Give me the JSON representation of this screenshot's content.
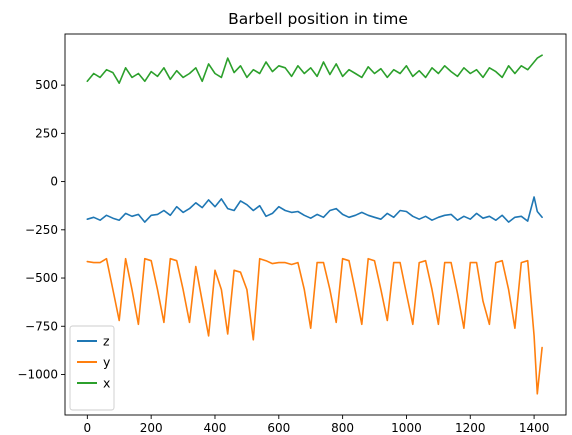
{
  "chart_data": {
    "type": "line",
    "title": "Barbell position in time",
    "xlabel": "",
    "ylabel": "",
    "xlim": [
      -70,
      1500
    ],
    "ylim": [
      -1210,
      765
    ],
    "x_ticks": [
      0,
      200,
      400,
      600,
      800,
      1000,
      1200,
      1400
    ],
    "y_ticks": [
      -1000,
      -750,
      -500,
      -250,
      0,
      250,
      500
    ],
    "grid": false,
    "legend_position": "lower-left",
    "x": [
      0,
      20,
      40,
      60,
      80,
      100,
      120,
      140,
      160,
      180,
      200,
      220,
      240,
      260,
      280,
      300,
      320,
      340,
      360,
      380,
      400,
      420,
      440,
      460,
      480,
      500,
      520,
      540,
      560,
      580,
      600,
      620,
      640,
      660,
      680,
      700,
      720,
      740,
      760,
      780,
      800,
      820,
      840,
      860,
      880,
      900,
      920,
      940,
      960,
      980,
      1000,
      1020,
      1040,
      1060,
      1080,
      1100,
      1120,
      1140,
      1160,
      1180,
      1200,
      1220,
      1240,
      1260,
      1280,
      1300,
      1320,
      1340,
      1360,
      1380,
      1400,
      1410,
      1425
    ],
    "series": [
      {
        "name": "z",
        "color": "#1f77b4",
        "values": [
          -195,
          -185,
          -200,
          -175,
          -190,
          -200,
          -165,
          -180,
          -170,
          -210,
          -175,
          -170,
          -150,
          -175,
          -130,
          -160,
          -140,
          -110,
          -135,
          -95,
          -130,
          -90,
          -140,
          -150,
          -100,
          -120,
          -150,
          -125,
          -180,
          -165,
          -130,
          -150,
          -160,
          -155,
          -175,
          -190,
          -170,
          -185,
          -150,
          -140,
          -170,
          -185,
          -175,
          -160,
          -175,
          -185,
          -195,
          -165,
          -185,
          -150,
          -155,
          -180,
          -195,
          -180,
          -200,
          -185,
          -175,
          -170,
          -200,
          -180,
          -195,
          -165,
          -190,
          -180,
          -200,
          -175,
          -210,
          -185,
          -180,
          -205,
          -80,
          -155,
          -185
        ]
      },
      {
        "name": "y",
        "color": "#ff7f0e",
        "values": [
          -415,
          -420,
          -420,
          -400,
          -560,
          -720,
          -400,
          -560,
          -740,
          -400,
          -410,
          -560,
          -730,
          -400,
          -410,
          -560,
          -730,
          -440,
          -620,
          -800,
          -460,
          -560,
          -790,
          -460,
          -470,
          -560,
          -820,
          -400,
          -410,
          -425,
          -420,
          -420,
          -430,
          -420,
          -560,
          -760,
          -420,
          -420,
          -560,
          -730,
          -400,
          -410,
          -570,
          -740,
          -400,
          -410,
          -560,
          -720,
          -420,
          -420,
          -580,
          -740,
          -420,
          -410,
          -560,
          -740,
          -420,
          -420,
          -580,
          -760,
          -420,
          -420,
          -620,
          -740,
          -420,
          -410,
          -560,
          -760,
          -420,
          -410,
          -800,
          -1100,
          -860
        ]
      },
      {
        "name": "x",
        "color": "#2ca02c",
        "values": [
          520,
          560,
          540,
          580,
          565,
          510,
          590,
          540,
          560,
          520,
          570,
          545,
          590,
          530,
          575,
          540,
          560,
          590,
          520,
          610,
          560,
          540,
          640,
          565,
          600,
          540,
          580,
          560,
          620,
          570,
          600,
          590,
          545,
          600,
          560,
          590,
          545,
          620,
          555,
          610,
          545,
          580,
          560,
          540,
          595,
          560,
          585,
          540,
          580,
          560,
          600,
          545,
          575,
          540,
          590,
          560,
          600,
          570,
          545,
          590,
          560,
          580,
          540,
          590,
          570,
          540,
          600,
          560,
          600,
          580,
          620,
          640,
          655
        ]
      }
    ]
  }
}
